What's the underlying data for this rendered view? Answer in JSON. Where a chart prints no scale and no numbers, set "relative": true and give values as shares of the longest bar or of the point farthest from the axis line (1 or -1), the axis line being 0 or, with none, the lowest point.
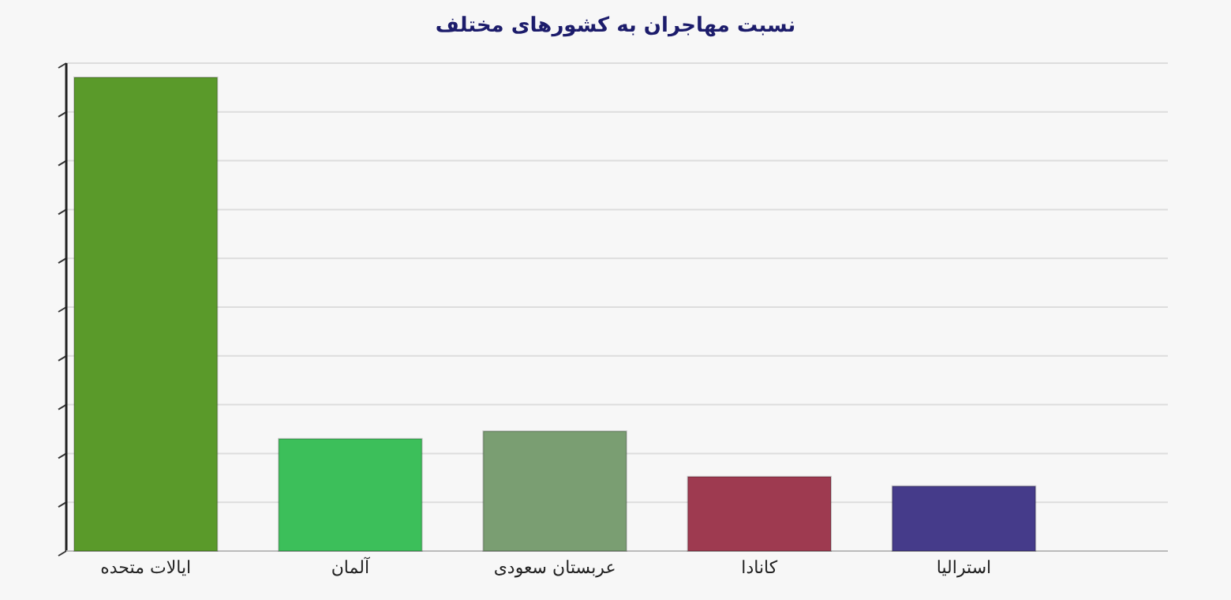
{
  "chart_data": {
    "type": "bar",
    "title": "نسبت مهاجران به کشورهای مختلف",
    "categories": [
      "ایالات متحده",
      "آلمان",
      "عربستان سعودی",
      "کانادا",
      "استرالیا"
    ],
    "values": [
      1,
      0.237,
      0.253,
      0.157,
      0.137
    ],
    "colors": [
      "#5a9a2a",
      "#3cbf5a",
      "#7a9e72",
      "#9e3a50",
      "#453b8a"
    ],
    "relative": true,
    "grid": true
  }
}
